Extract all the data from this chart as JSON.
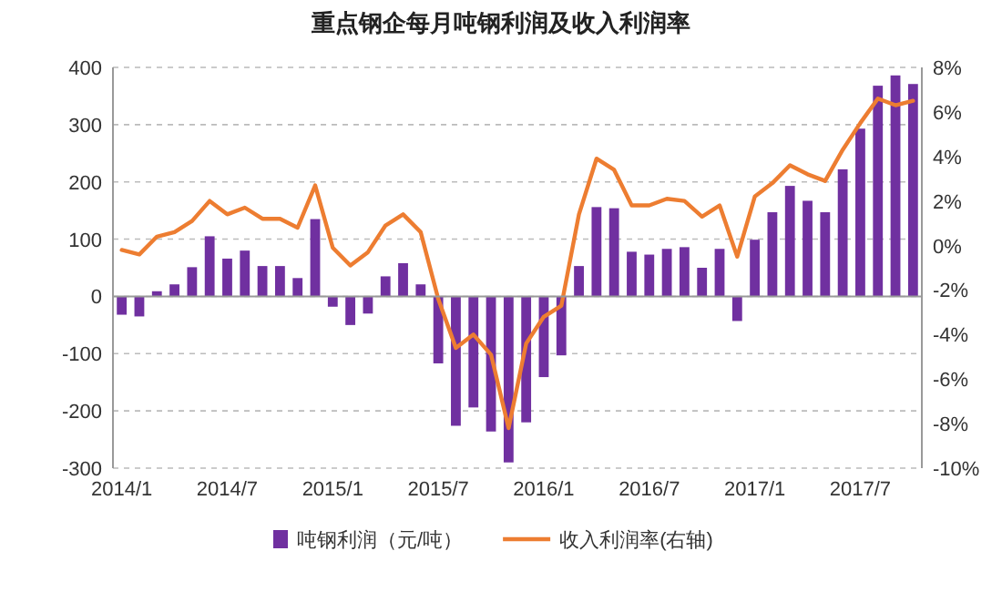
{
  "chart_data": {
    "type": "bar",
    "title": "重点钢企每月吨钢利润及收入利润率",
    "categories": [
      "2014/1",
      null,
      null,
      null,
      null,
      null,
      "2014/7",
      null,
      null,
      null,
      null,
      null,
      "2015/1",
      null,
      null,
      null,
      null,
      null,
      "2015/7",
      null,
      null,
      null,
      null,
      null,
      "2016/1",
      null,
      null,
      null,
      null,
      null,
      "2016/7",
      null,
      null,
      null,
      null,
      null,
      "2017/1",
      null,
      null,
      null,
      null,
      null,
      "2017/7",
      null,
      null,
      null
    ],
    "series": [
      {
        "name": "吨钢利润（元/吨）",
        "color": "#7030a0",
        "values": [
          -32,
          -35,
          9,
          21,
          51,
          105,
          66,
          80,
          53,
          53,
          32,
          135,
          -18,
          -50,
          -30,
          35,
          58,
          21,
          -117,
          -226,
          -194,
          -236,
          -290,
          -220,
          -141,
          -103,
          53,
          156,
          154,
          78,
          73,
          83,
          86,
          50,
          83,
          -43,
          99,
          147,
          193,
          167,
          147,
          222,
          293,
          368,
          386,
          371
        ]
      },
      {
        "name": "收入利润率(右轴)",
        "type": "line",
        "axis": "y2",
        "color": "#ed7d31",
        "values": [
          -0.2,
          -0.4,
          0.4,
          0.6,
          1.1,
          2.0,
          1.4,
          1.7,
          1.2,
          1.2,
          0.8,
          2.7,
          -0.1,
          -0.9,
          -0.3,
          0.9,
          1.4,
          0.6,
          -2.4,
          -4.6,
          -4.0,
          -4.9,
          -8.2,
          -4.4,
          -3.2,
          -2.7,
          1.4,
          3.9,
          3.4,
          1.8,
          1.8,
          2.1,
          2.0,
          1.3,
          1.8,
          -0.5,
          2.2,
          2.8,
          3.6,
          3.2,
          2.9,
          4.3,
          5.5,
          6.6,
          6.3,
          6.5
        ]
      }
    ],
    "ylim": [
      -300,
      400
    ],
    "yticks": [
      -300,
      -200,
      -100,
      0,
      100,
      200,
      300,
      400
    ],
    "y2lim": [
      -10,
      8
    ],
    "y2ticks": [
      {
        "value": -10,
        "label": "-10%"
      },
      {
        "value": -8,
        "label": "-8%"
      },
      {
        "value": -6,
        "label": "-6%"
      },
      {
        "value": -4,
        "label": "-4%"
      },
      {
        "value": -2,
        "label": "-2%"
      },
      {
        "value": 0,
        "label": "0%"
      },
      {
        "value": 2,
        "label": "2%"
      },
      {
        "value": 4,
        "label": "4%"
      },
      {
        "value": 6,
        "label": "6%"
      },
      {
        "value": 8,
        "label": "8%"
      }
    ],
    "grid": "y",
    "legend": "bottom"
  }
}
